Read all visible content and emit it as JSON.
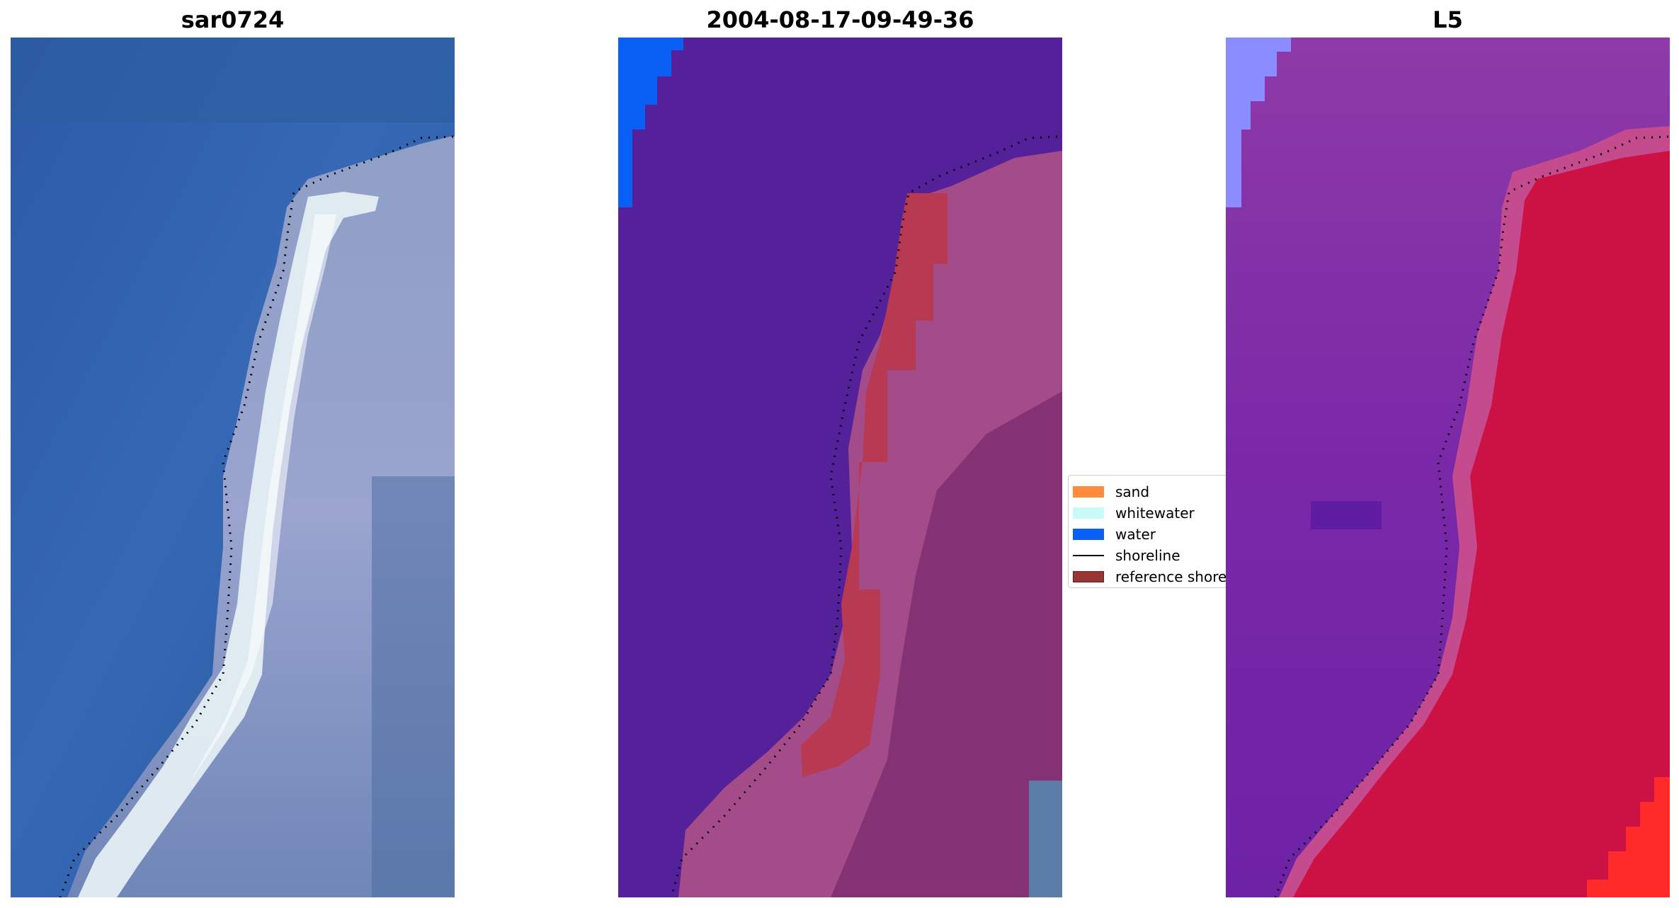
{
  "panels": [
    {
      "title": "sar0724"
    },
    {
      "title": "2004-08-17-09-49-36"
    },
    {
      "title": "L5"
    }
  ],
  "legend": {
    "items": [
      {
        "label": "sand",
        "color": "#ff8c3a",
        "kind": "patch"
      },
      {
        "label": "whitewater",
        "color": "#c8fafa",
        "kind": "patch"
      },
      {
        "label": "water",
        "color": "#0a5ff5",
        "kind": "patch"
      },
      {
        "label": "shoreline",
        "color": "#000000",
        "kind": "line"
      },
      {
        "label": "reference shoreline",
        "color": "#9a3535",
        "kind": "patch"
      }
    ]
  },
  "colors": {
    "rgb_sea": "#2f62a8",
    "rgb_beach": "#e6eef2",
    "rgb_land": "#8f9cc4",
    "class_background": "#54219a",
    "class_land": "#a44c8a",
    "class_sand_overlay": "#b83a52",
    "index_sea": "#7d2aa6",
    "index_land": "#cc1245",
    "index_corner": "#ff2a2a",
    "water_patch": "#0a5ff5",
    "water_light": "#8a8cff"
  },
  "chart_data": {
    "type": "image-panels",
    "titles": [
      "sar0724",
      "2004-08-17-09-49-36",
      "L5"
    ],
    "legend_entries": [
      "sand",
      "whitewater",
      "water",
      "shoreline",
      "reference shoreline"
    ],
    "grid": false,
    "axes": "off",
    "legend_placement": "center-right of middle panel"
  }
}
